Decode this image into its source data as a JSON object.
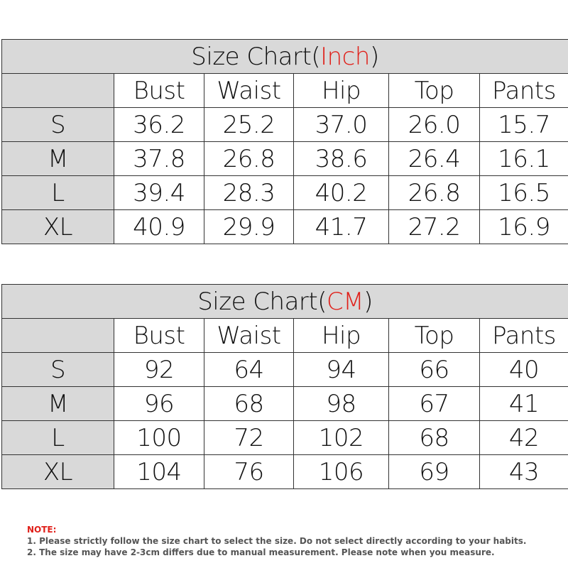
{
  "tables": [
    {
      "title": {
        "prefix": "Size Chart(",
        "unit": "Inch",
        "suffix": ")"
      },
      "columns": [
        "Bust",
        "Waist",
        "Hip",
        "Top",
        "Pants"
      ],
      "rows": [
        {
          "size": "S",
          "values": [
            "36.2",
            "25.2",
            "37.0",
            "26.0",
            "15.7"
          ]
        },
        {
          "size": "M",
          "values": [
            "37.8",
            "26.8",
            "38.6",
            "26.4",
            "16.1"
          ]
        },
        {
          "size": "L",
          "values": [
            "39.4",
            "28.3",
            "40.2",
            "26.8",
            "16.5"
          ]
        },
        {
          "size": "XL",
          "values": [
            "40.9",
            "29.9",
            "41.7",
            "27.2",
            "16.9"
          ]
        }
      ]
    },
    {
      "title": {
        "prefix": "Size Chart(",
        "unit": "CM",
        "suffix": ")"
      },
      "columns": [
        "Bust",
        "Waist",
        "Hip",
        "Top",
        "Pants"
      ],
      "rows": [
        {
          "size": "S",
          "values": [
            "92",
            "64",
            "94",
            "66",
            "40"
          ]
        },
        {
          "size": "M",
          "values": [
            "96",
            "68",
            "98",
            "67",
            "41"
          ]
        },
        {
          "size": "L",
          "values": [
            "100",
            "72",
            "102",
            "68",
            "42"
          ]
        },
        {
          "size": "XL",
          "values": [
            "104",
            "76",
            "106",
            "69",
            "43"
          ]
        }
      ]
    }
  ],
  "notes": {
    "label": "NOTE:",
    "lines": [
      "1. Please strictly follow the size chart  to select the size. Do not select directly according to your habits.",
      "2. The size may have 2-3cm differs due to manual measurement. Please note when you measure."
    ]
  }
}
